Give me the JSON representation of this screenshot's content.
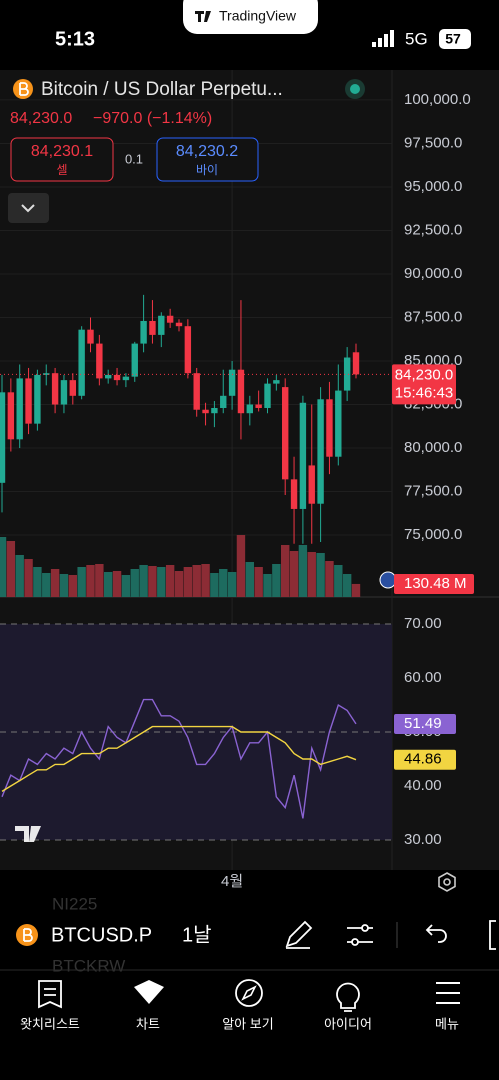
{
  "status_bar": {
    "time": "5:13",
    "network": "5G",
    "battery": "57"
  },
  "app_badge": "TradingView",
  "header": {
    "symbol_name": "Bitcoin / US Dollar Perpetu...",
    "quote": "84,230.0",
    "change": "−970.0 (−1.14%)",
    "sell": {
      "price": "84,230.1",
      "label": "셀"
    },
    "spread": "0.1",
    "buy": {
      "price": "84,230.2",
      "label": "바이"
    }
  },
  "chart_data": [
    {
      "type": "candlestick",
      "categories": [
        null,
        null,
        null,
        null,
        null,
        null,
        null,
        null,
        null,
        null,
        null,
        null,
        null,
        null,
        null,
        null,
        null,
        null,
        null,
        null,
        null,
        null,
        null,
        null,
        null,
        null,
        "4월",
        null,
        null,
        null,
        null,
        null,
        null,
        null,
        null,
        null,
        null,
        null,
        null,
        null,
        null
      ],
      "open": [
        78000,
        83200,
        80500,
        84000,
        81400,
        84200,
        84300,
        82500,
        83900,
        83000,
        86800,
        86000,
        84000,
        84200,
        83900,
        84100,
        86000,
        87300,
        86500,
        87600,
        87200,
        87000,
        84300,
        82200,
        82000,
        82300,
        83000,
        84500,
        82000,
        82500,
        82300,
        83700,
        83500,
        78200,
        76500,
        79000,
        76800,
        82800,
        79500,
        83300,
        85500
      ],
      "high": [
        84200,
        84000,
        84800,
        84600,
        84500,
        84800,
        84600,
        84200,
        84300,
        87000,
        87500,
        86500,
        84500,
        84600,
        84300,
        86100,
        88800,
        88500,
        87800,
        88000,
        87400,
        87400,
        84600,
        82600,
        82700,
        84500,
        85000,
        88500,
        83000,
        83300,
        84000,
        84200,
        84000,
        79500,
        83000,
        82500,
        83500,
        83800,
        84800,
        85800,
        86000
      ],
      "low": [
        76300,
        79800,
        80000,
        80800,
        81000,
        83600,
        82000,
        82000,
        82500,
        82800,
        85500,
        83600,
        83700,
        83600,
        83500,
        83800,
        85500,
        86000,
        85800,
        86900,
        86700,
        84000,
        81800,
        81300,
        81200,
        82000,
        82200,
        80500,
        81300,
        82100,
        82000,
        83300,
        77300,
        74500,
        74500,
        74500,
        74600,
        78500,
        79000,
        82700,
        84000
      ],
      "close": [
        83200,
        80500,
        84000,
        81400,
        84200,
        84300,
        82500,
        83900,
        83000,
        86800,
        86000,
        84000,
        84200,
        83900,
        84100,
        86000,
        87300,
        86500,
        87600,
        87200,
        87000,
        84300,
        82200,
        82000,
        82300,
        83000,
        84500,
        82000,
        82500,
        82300,
        83700,
        83900,
        78200,
        76500,
        82600,
        76800,
        82800,
        79500,
        83300,
        85200,
        84230
      ],
      "up_color": "#22ab94",
      "down_color": "#f23645",
      "ylim": [
        71440,
        101720
      ],
      "yticks": [
        {
          "value": 100000,
          "label": "100,000.0"
        },
        {
          "value": 97500,
          "label": "97,500.0"
        },
        {
          "value": 95000,
          "label": "95,000.0"
        },
        {
          "value": 92500,
          "label": "92,500.0"
        },
        {
          "value": 90000,
          "label": "90,000.0"
        },
        {
          "value": 87500,
          "label": "87,500.0"
        },
        {
          "value": 85000,
          "label": "85,000.0"
        },
        {
          "value": 82500,
          "label": "82,500.0"
        },
        {
          "value": 80000,
          "label": "80,000.0"
        },
        {
          "value": 77500,
          "label": "77,500.0"
        },
        {
          "value": 75000,
          "label": "75,000.0"
        }
      ],
      "grid": true,
      "last_price": {
        "value": 84230,
        "label": "84,230.0"
      },
      "countdown": "15:46:43"
    },
    {
      "type": "bar",
      "values": [
        600,
        560,
        420,
        380,
        300,
        240,
        280,
        230,
        220,
        300,
        320,
        330,
        250,
        260,
        220,
        280,
        320,
        310,
        300,
        320,
        260,
        300,
        320,
        330,
        240,
        280,
        250,
        620,
        350,
        300,
        230,
        330,
        520,
        460,
        520,
        450,
        440,
        360,
        320,
        230,
        130.48
      ],
      "up_color": "#1d6b5f",
      "down_color": "#8c2c35",
      "ylim": [
        0,
        700
      ],
      "last_value": {
        "value": 130.48,
        "label": "130.48 M"
      }
    },
    {
      "type": "line",
      "series": [
        {
          "color": "#8a63d2",
          "values": [
            38,
            42,
            41,
            45,
            44,
            46,
            45,
            47,
            46,
            50,
            47,
            45,
            51,
            49,
            48,
            52,
            56,
            56,
            53,
            53,
            52,
            49,
            44,
            44,
            46,
            49,
            51,
            45,
            48,
            48,
            50,
            38,
            36,
            42,
            34,
            47,
            43,
            50,
            55,
            54,
            51.49
          ]
        },
        {
          "color": "#f2d541",
          "values": [
            39,
            40,
            41,
            42,
            43,
            43,
            44,
            44,
            45,
            46,
            46,
            46,
            47,
            47,
            48,
            49,
            50,
            51,
            51,
            51,
            51,
            51,
            51,
            51,
            51,
            51,
            51,
            50,
            50,
            50,
            50,
            49,
            48,
            46,
            45,
            45,
            44,
            44.5,
            45,
            45.5,
            44.86
          ]
        }
      ],
      "ylim": [
        24.44,
        75
      ],
      "yticks": [
        {
          "value": 70,
          "label": "70.00"
        },
        {
          "value": 60,
          "label": "60.00"
        },
        {
          "value": 50,
          "label": "50.00"
        },
        {
          "value": 40,
          "label": "40.00"
        },
        {
          "value": 30,
          "label": "30.00"
        }
      ],
      "band": [
        30,
        70
      ],
      "dashed_levels": [
        70,
        50,
        30
      ]
    }
  ],
  "toolbar": {
    "symbol": "BTCUSD.P",
    "interval": "1날",
    "background_symbols": [
      "NI225",
      "BTCKRW"
    ]
  },
  "tab_bar": [
    "왓치리스트",
    "차트",
    "알아 보기",
    "아이디어",
    "메뉴"
  ]
}
